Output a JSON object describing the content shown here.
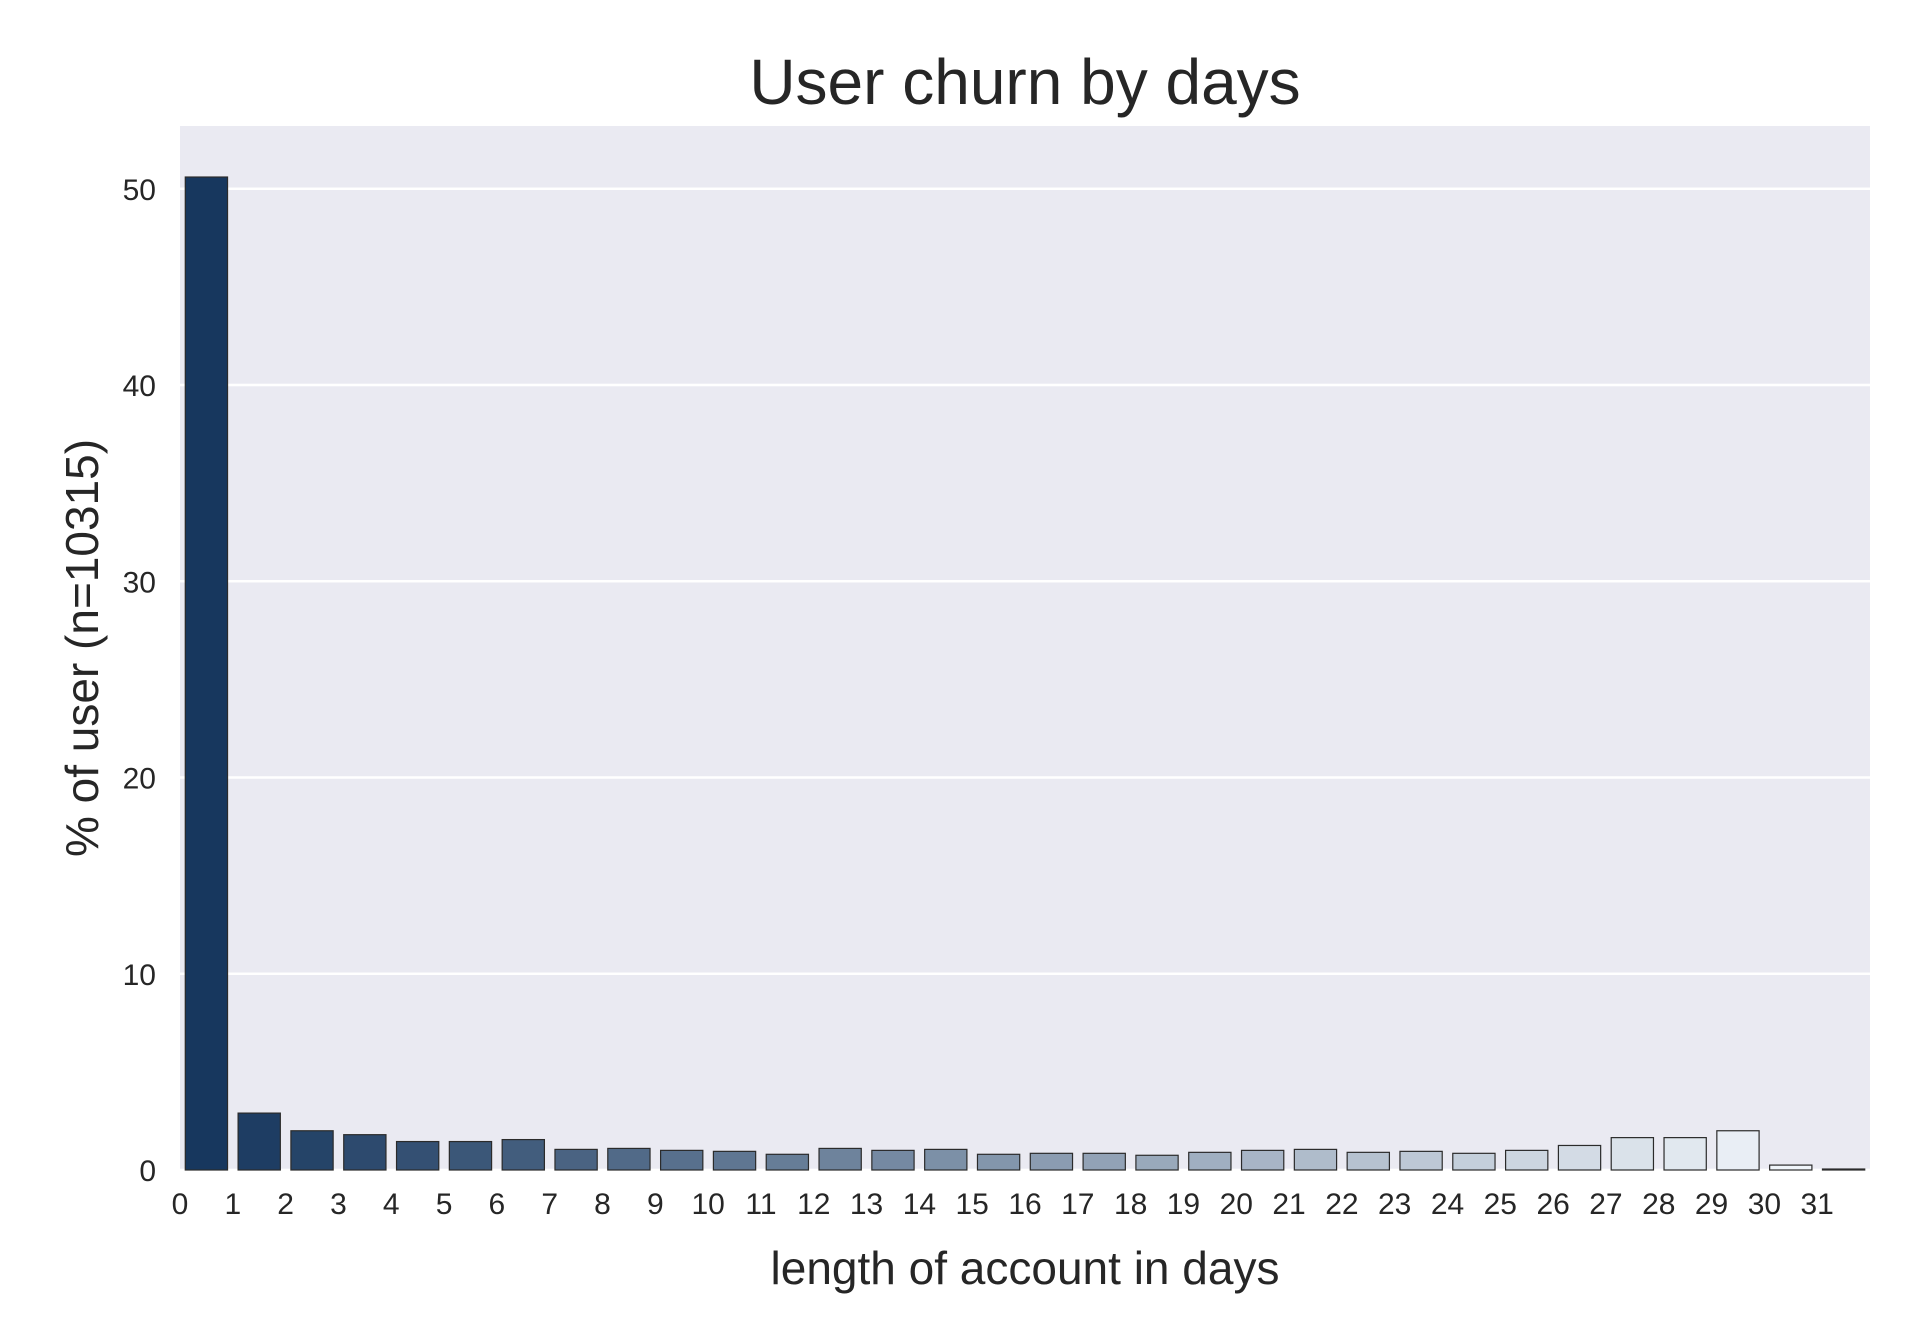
{
  "chart_data": {
    "type": "bar",
    "title": "User churn by days",
    "xlabel": "length of account in days",
    "ylabel": "% of user (n=10315)",
    "categories": [
      "0",
      "1",
      "2",
      "3",
      "4",
      "5",
      "6",
      "7",
      "8",
      "9",
      "10",
      "11",
      "12",
      "13",
      "14",
      "15",
      "16",
      "17",
      "18",
      "19",
      "20",
      "21",
      "22",
      "23",
      "24",
      "25",
      "26",
      "27",
      "28",
      "29",
      "30",
      "31"
    ],
    "values": [
      50.6,
      2.9,
      2.0,
      1.8,
      1.45,
      1.45,
      1.55,
      1.05,
      1.1,
      1.0,
      0.95,
      0.8,
      1.1,
      1.0,
      1.05,
      0.8,
      0.85,
      0.85,
      0.75,
      0.9,
      1.0,
      1.05,
      0.9,
      0.95,
      0.85,
      1.0,
      1.25,
      1.65,
      1.65,
      2.0,
      0.25,
      0.05
    ],
    "ylim": [
      0,
      53.2
    ],
    "yticks": [
      0,
      10,
      20,
      30,
      40,
      50
    ],
    "grid": true,
    "palette": "Blues_r",
    "colors": {
      "plot_background": "#eaeaf2",
      "grid": "#ffffff",
      "bar_dark": "#17375e",
      "bar_light": "#f7fbff",
      "bar_edge": "#2b2b2b"
    }
  }
}
